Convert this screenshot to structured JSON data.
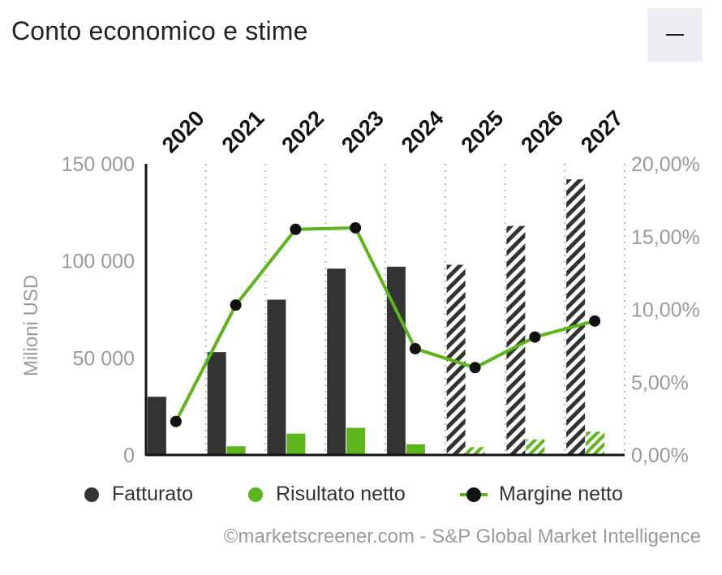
{
  "header": {
    "title": "Conto economico e stime",
    "collapse_icon": "minus-icon"
  },
  "chart_data": {
    "type": "bar",
    "categories": [
      "2020",
      "2021",
      "2022",
      "2023",
      "2024",
      "2025",
      "2026",
      "2027"
    ],
    "estimate_from": "2025",
    "ylabel": "Milioni USD",
    "ylim": [
      0,
      150000
    ],
    "left_ticks": [
      "0",
      "50 000",
      "100 000",
      "150 000"
    ],
    "left_tick_values": [
      0,
      50000,
      100000,
      150000
    ],
    "y2lim": [
      0,
      20
    ],
    "right_ticks": [
      "0,00%",
      "5,00%",
      "10,00%",
      "15,00%",
      "20,00%"
    ],
    "right_tick_values": [
      0,
      5,
      10,
      15,
      20
    ],
    "series": [
      {
        "name": "Fatturato",
        "type": "bar",
        "axis": "left",
        "color": "#333333",
        "values": [
          30000,
          53000,
          80000,
          96000,
          97000,
          98000,
          118000,
          142000
        ]
      },
      {
        "name": "Risultato netto",
        "type": "bar",
        "axis": "left",
        "color": "#5cb51a",
        "values": [
          0,
          4500,
          11000,
          14000,
          5500,
          4000,
          8000,
          12000
        ]
      },
      {
        "name": "Margine netto",
        "type": "line",
        "axis": "right",
        "color": "#5cb51a",
        "values": [
          2.3,
          10.3,
          15.5,
          15.6,
          7.3,
          6.0,
          8.1,
          9.2
        ]
      }
    ],
    "grid": "vertical-dotted",
    "legend_position": "bottom"
  },
  "legend": [
    {
      "label": "Fatturato",
      "marker": "dot",
      "color": "#333333"
    },
    {
      "label": "Risultato netto",
      "marker": "dot",
      "color": "#5cb51a"
    },
    {
      "label": "Margine netto",
      "marker": "line-dot",
      "color": "#5cb51a"
    }
  ],
  "source": "©marketscreener.com - S&P Global Market Intelligence"
}
